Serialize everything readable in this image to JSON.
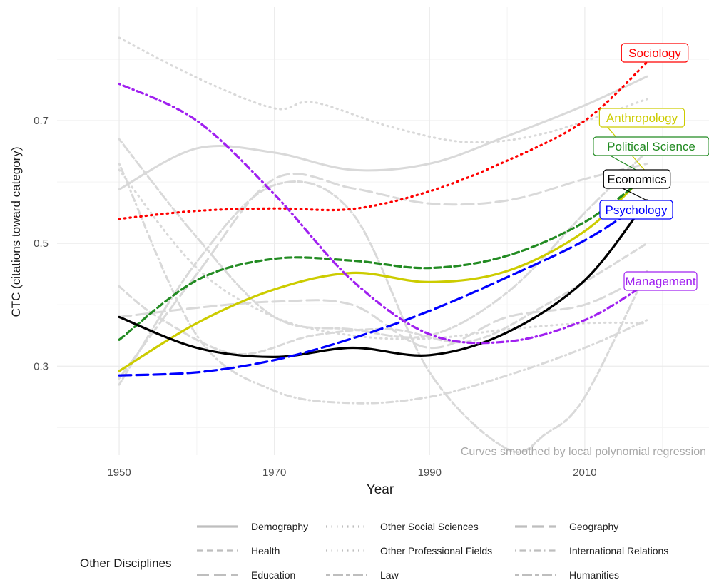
{
  "chart_data": {
    "type": "line",
    "title": "",
    "xlabel": "Year",
    "ylabel": "CTC (citations toward category)",
    "xlim": [
      1942,
      2026
    ],
    "ylim": [
      0.155,
      0.885
    ],
    "x_ticks": [
      1950,
      1970,
      1990,
      2010
    ],
    "y_ticks": [
      0.3,
      0.5,
      0.7
    ],
    "grid": true,
    "annotation": "Curves smoothed by local polynomial regression",
    "highlighted_series": [
      {
        "name": "Sociology",
        "label": "Sociology",
        "color": "#ff0000",
        "dash": "dotted",
        "x": [
          1950,
          1960,
          1970,
          1980,
          1990,
          2000,
          2010,
          2018
        ],
        "values": [
          0.54,
          0.553,
          0.557,
          0.556,
          0.585,
          0.635,
          0.7,
          0.795
        ]
      },
      {
        "name": "Anthropology",
        "label": "Anthropology",
        "color": "#cccc00",
        "dash": "solid",
        "x": [
          1950,
          1960,
          1970,
          1980,
          1990,
          2000,
          2010,
          2018
        ],
        "values": [
          0.292,
          0.37,
          0.425,
          0.452,
          0.437,
          0.455,
          0.52,
          0.615
        ]
      },
      {
        "name": "Political Science",
        "label": "Political Science",
        "color": "#228b22",
        "dash": "dashed",
        "x": [
          1950,
          1960,
          1970,
          1980,
          1990,
          2000,
          2010,
          2018
        ],
        "values": [
          0.343,
          0.44,
          0.475,
          0.472,
          0.46,
          0.48,
          0.535,
          0.61
        ]
      },
      {
        "name": "Economics",
        "label": "Economics",
        "color": "#000000",
        "dash": "solid",
        "x": [
          1950,
          1960,
          1970,
          1980,
          1990,
          2000,
          2010,
          2018
        ],
        "values": [
          0.38,
          0.33,
          0.315,
          0.33,
          0.318,
          0.355,
          0.44,
          0.57
        ]
      },
      {
        "name": "Psychology",
        "label": "Psychology",
        "color": "#0000ff",
        "dash": "longdash",
        "x": [
          1950,
          1960,
          1970,
          1980,
          1990,
          2000,
          2010,
          2018
        ],
        "values": [
          0.285,
          0.29,
          0.31,
          0.345,
          0.39,
          0.445,
          0.505,
          0.57
        ]
      },
      {
        "name": "Management",
        "label": "Management",
        "color": "#a020f0",
        "dash": "dotdash",
        "x": [
          1950,
          1960,
          1970,
          1980,
          1990,
          2000,
          2010,
          2018
        ],
        "values": [
          0.76,
          0.7,
          0.58,
          0.44,
          0.352,
          0.34,
          0.375,
          0.435
        ]
      }
    ],
    "other_series": [
      {
        "name": "Demography",
        "dash": "solid",
        "x": [
          1950,
          1960,
          1970,
          1980,
          1990,
          2000,
          2010,
          2018
        ],
        "values": [
          0.588,
          0.655,
          0.648,
          0.62,
          0.63,
          0.675,
          0.725,
          0.772
        ]
      },
      {
        "name": "Health",
        "dash": "dashed",
        "x": [
          1950,
          1955,
          1965,
          1975,
          1985,
          1995,
          2005,
          2018
        ],
        "values": [
          0.43,
          0.38,
          0.32,
          0.35,
          0.36,
          0.34,
          0.4,
          0.5
        ]
      },
      {
        "name": "Education",
        "dash": "longdash",
        "x": [
          1950,
          1960,
          1970,
          1980,
          1990,
          2000,
          2010,
          2018
        ],
        "values": [
          0.38,
          0.395,
          0.405,
          0.4,
          0.33,
          0.38,
          0.4,
          0.45
        ]
      },
      {
        "name": "Other Social Sciences",
        "dash": "dotted",
        "x": [
          1950,
          1960,
          1970,
          1975,
          1985,
          1995,
          2005,
          2018
        ],
        "values": [
          0.835,
          0.77,
          0.72,
          0.73,
          0.69,
          0.665,
          0.68,
          0.735
        ]
      },
      {
        "name": "Other Professional Fields",
        "dash": "dotted",
        "x": [
          1950,
          1960,
          1970,
          1980,
          1990,
          2000,
          2010,
          2018
        ],
        "values": [
          0.62,
          0.46,
          0.38,
          0.35,
          0.345,
          0.36,
          0.37,
          0.37
        ]
      },
      {
        "name": "Law",
        "dash": "twodash",
        "x": [
          1950,
          1960,
          1970,
          1980,
          1990,
          2000,
          2010,
          2018
        ],
        "values": [
          0.67,
          0.51,
          0.38,
          0.36,
          0.35,
          0.42,
          0.55,
          0.65
        ]
      },
      {
        "name": "Geography",
        "dash": "longdash",
        "x": [
          1950,
          1960,
          1970,
          1980,
          1990,
          2000,
          2010,
          2018
        ],
        "values": [
          0.28,
          0.45,
          0.605,
          0.59,
          0.565,
          0.57,
          0.605,
          0.63
        ]
      },
      {
        "name": "International Relations",
        "dash": "dotdash",
        "x": [
          1950,
          1960,
          1970,
          1980,
          1990,
          2000,
          2010,
          2018
        ],
        "values": [
          0.63,
          0.35,
          0.26,
          0.24,
          0.25,
          0.285,
          0.33,
          0.375
        ]
      },
      {
        "name": "Humanities",
        "dash": "twodash",
        "x": [
          1950,
          1960,
          1970,
          1980,
          1990,
          2000,
          2005,
          2010,
          2018
        ],
        "values": [
          0.27,
          0.47,
          0.595,
          0.55,
          0.29,
          0.165,
          0.19,
          0.25,
          0.455
        ]
      }
    ],
    "legend": {
      "title": "Other Disciplines",
      "position": "bottom",
      "columns": [
        [
          "Demography",
          "Health",
          "Education"
        ],
        [
          "Other Social Sciences",
          "Other Professional Fields",
          "Law"
        ],
        [
          "Geography",
          "International Relations",
          "Humanities"
        ]
      ]
    },
    "colors": {
      "other_lines": "#d9d9d9",
      "legend_keys": "#bebebe",
      "grid": "#ebebeb",
      "annotation": "#a8a8a8"
    }
  }
}
